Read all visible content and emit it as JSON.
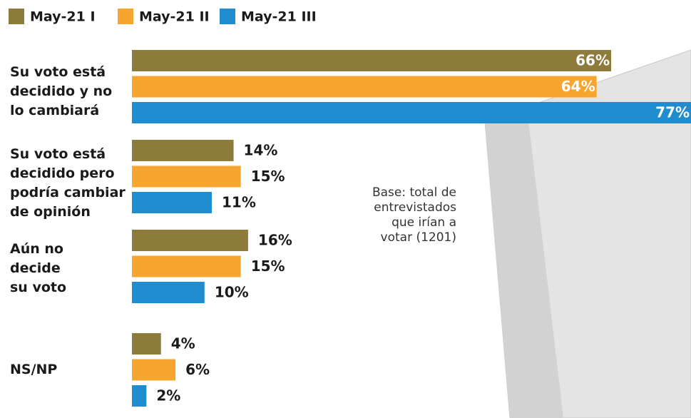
{
  "chart_data": {
    "type": "bar",
    "orientation": "horizontal",
    "categories": [
      "Su voto está\ndecidido y no\nlo cambiará",
      "Su voto está\ndecidido pero\npodría cambiar\nde opinión",
      "Aún no\ndecide\nsu voto",
      "NS/NP"
    ],
    "series": [
      {
        "name": "May-21 I",
        "color": "#8c7b3b",
        "values": [
          66,
          14,
          16,
          4
        ],
        "value_labels": [
          "66%",
          "14%",
          "16%",
          "4%"
        ]
      },
      {
        "name": "May-21 II",
        "color": "#f6a52f",
        "values": [
          64,
          15,
          15,
          6
        ],
        "value_labels": [
          "64%",
          "15%",
          "15%",
          "6%"
        ]
      },
      {
        "name": "May-21 III",
        "color": "#1f8ccf",
        "values": [
          77,
          11,
          10,
          2
        ],
        "value_labels": [
          "77%",
          "11%",
          "10%",
          "2%"
        ]
      }
    ],
    "annotation": "Base: total de\nentrevistados\nque irían a\nvotar (1201)"
  }
}
